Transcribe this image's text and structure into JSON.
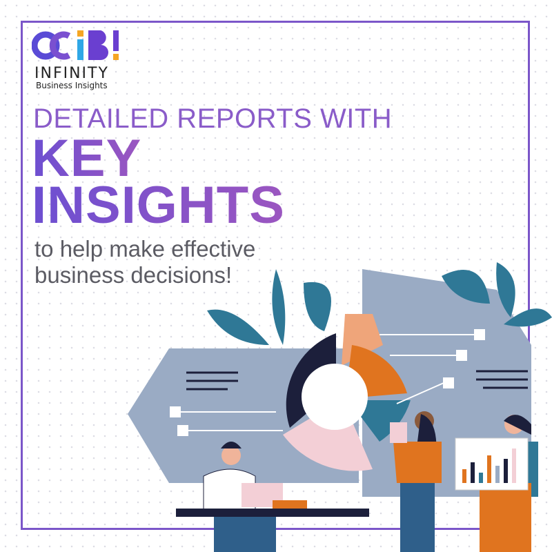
{
  "brand": {
    "logo_text": "OCiB!",
    "name": "INFINITY",
    "tagline": "Business Insights"
  },
  "headline": {
    "line1": "DETAILED REPORTS WITH",
    "line2": "KEY",
    "line3": "INSIGHTS"
  },
  "subtitle": {
    "line1": "to help make effective",
    "line2": "business decisions!"
  },
  "colors": {
    "purple": "#7b56c9",
    "navy": "#1c1f3b",
    "blue_gray": "#9aabc4",
    "orange": "#e0741f",
    "peach": "#efa57a",
    "pink": "#f3cfd6",
    "teal": "#2f7896"
  }
}
